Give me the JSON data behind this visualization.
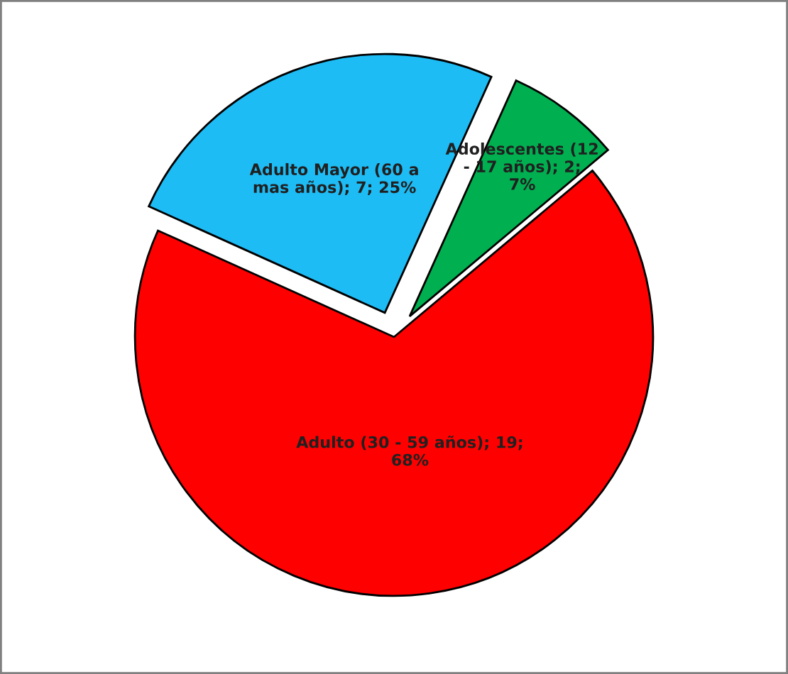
{
  "chart_data": {
    "type": "pie",
    "categories": [
      "Adolescentes (12 - 17 años)",
      "Adulto Mayor (60 a mas años)",
      "Adulto (30 - 59 años)"
    ],
    "values": [
      2,
      7,
      19
    ],
    "value_labels": [
      "; 2; 7%",
      "; 7; 25%",
      "; 19; 68%"
    ],
    "colors": [
      "#00b050",
      "#1ebcf5",
      "#ff0000"
    ],
    "legend": false
  }
}
